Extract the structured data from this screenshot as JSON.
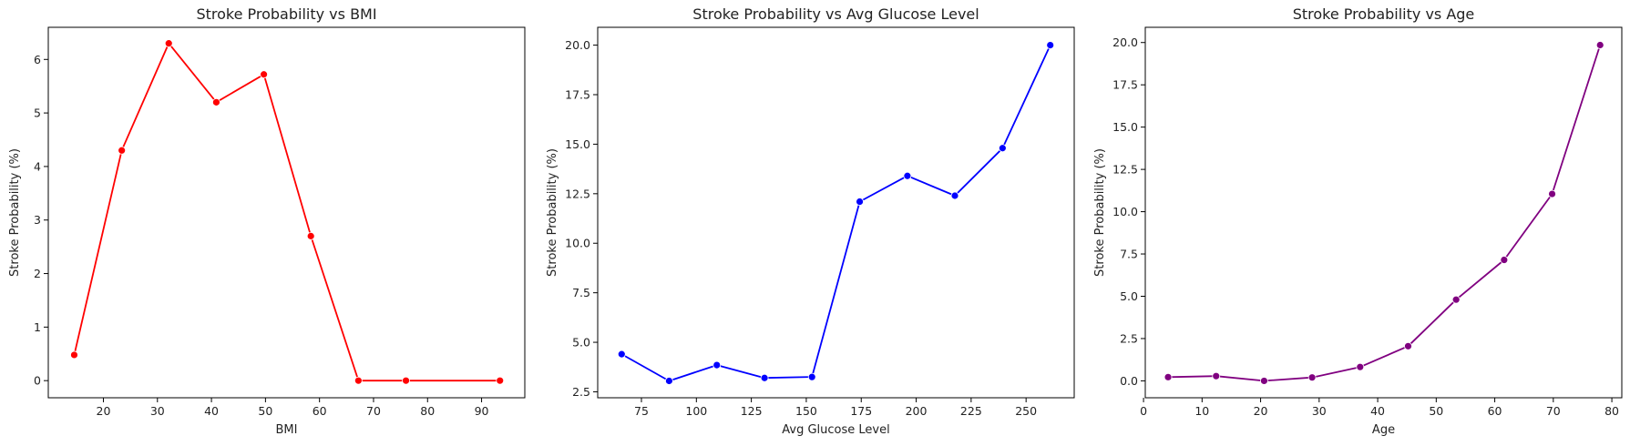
{
  "charts": [
    {
      "type": "line",
      "title": "Stroke Probability vs BMI",
      "xlabel": "BMI",
      "ylabel": "Stroke Probability (%)",
      "color": "#ff0000",
      "xlim": [
        9.8,
        98.0
      ],
      "ylim": [
        -0.32,
        6.6
      ],
      "xticks": [
        20,
        30,
        40,
        50,
        60,
        70,
        80,
        90
      ],
      "yticks": [
        0,
        1,
        2,
        3,
        4,
        5,
        6
      ],
      "ytick_labels": [
        "0",
        "1",
        "2",
        "3",
        "4",
        "5",
        "6"
      ],
      "x": [
        14.6,
        23.4,
        32.1,
        40.9,
        49.7,
        58.4,
        67.2,
        76.0,
        93.4
      ],
      "y": [
        0.48,
        4.3,
        6.3,
        5.2,
        5.72,
        2.7,
        0.0,
        0.0,
        0.0
      ]
    },
    {
      "type": "line",
      "title": "Stroke Probability vs Avg Glucose Level",
      "xlabel": "Avg Glucose Level",
      "ylabel": "Stroke Probability (%)",
      "color": "#0000ff",
      "xlim": [
        55.1,
        271.9
      ],
      "ylim": [
        2.2,
        20.9
      ],
      "xticks": [
        75,
        100,
        125,
        150,
        175,
        200,
        225,
        250
      ],
      "yticks": [
        2.5,
        5.0,
        7.5,
        10.0,
        12.5,
        15.0,
        17.5,
        20.0
      ],
      "ytick_labels": [
        "2.5",
        "5.0",
        "7.5",
        "10.0",
        "12.5",
        "15.0",
        "17.5",
        "20.0"
      ],
      "x": [
        66.0,
        87.6,
        109.3,
        131.0,
        152.6,
        174.3,
        196.0,
        217.6,
        239.3,
        261.0
      ],
      "y": [
        4.4,
        3.05,
        3.85,
        3.2,
        3.25,
        12.1,
        13.4,
        12.4,
        14.8,
        20.0
      ]
    },
    {
      "type": "line",
      "title": "Stroke Probability vs Age",
      "xlabel": "Age",
      "ylabel": "Stroke Probability (%)",
      "color": "#800080",
      "xlim": [
        0.3,
        81.7
      ],
      "ylim": [
        -1.0,
        20.9
      ],
      "xticks": [
        0,
        10,
        20,
        30,
        40,
        50,
        60,
        70,
        80
      ],
      "yticks": [
        0.0,
        2.5,
        5.0,
        7.5,
        10.0,
        12.5,
        15.0,
        17.5,
        20.0
      ],
      "ytick_labels": [
        "0.0",
        "2.5",
        "5.0",
        "7.5",
        "10.0",
        "12.5",
        "15.0",
        "17.5",
        "20.0"
      ],
      "x": [
        4.2,
        12.4,
        20.6,
        28.8,
        37.0,
        45.2,
        53.4,
        61.6,
        69.8,
        78.0
      ],
      "y": [
        0.22,
        0.28,
        0.0,
        0.2,
        0.82,
        2.05,
        4.8,
        7.15,
        11.05,
        19.85
      ]
    }
  ]
}
